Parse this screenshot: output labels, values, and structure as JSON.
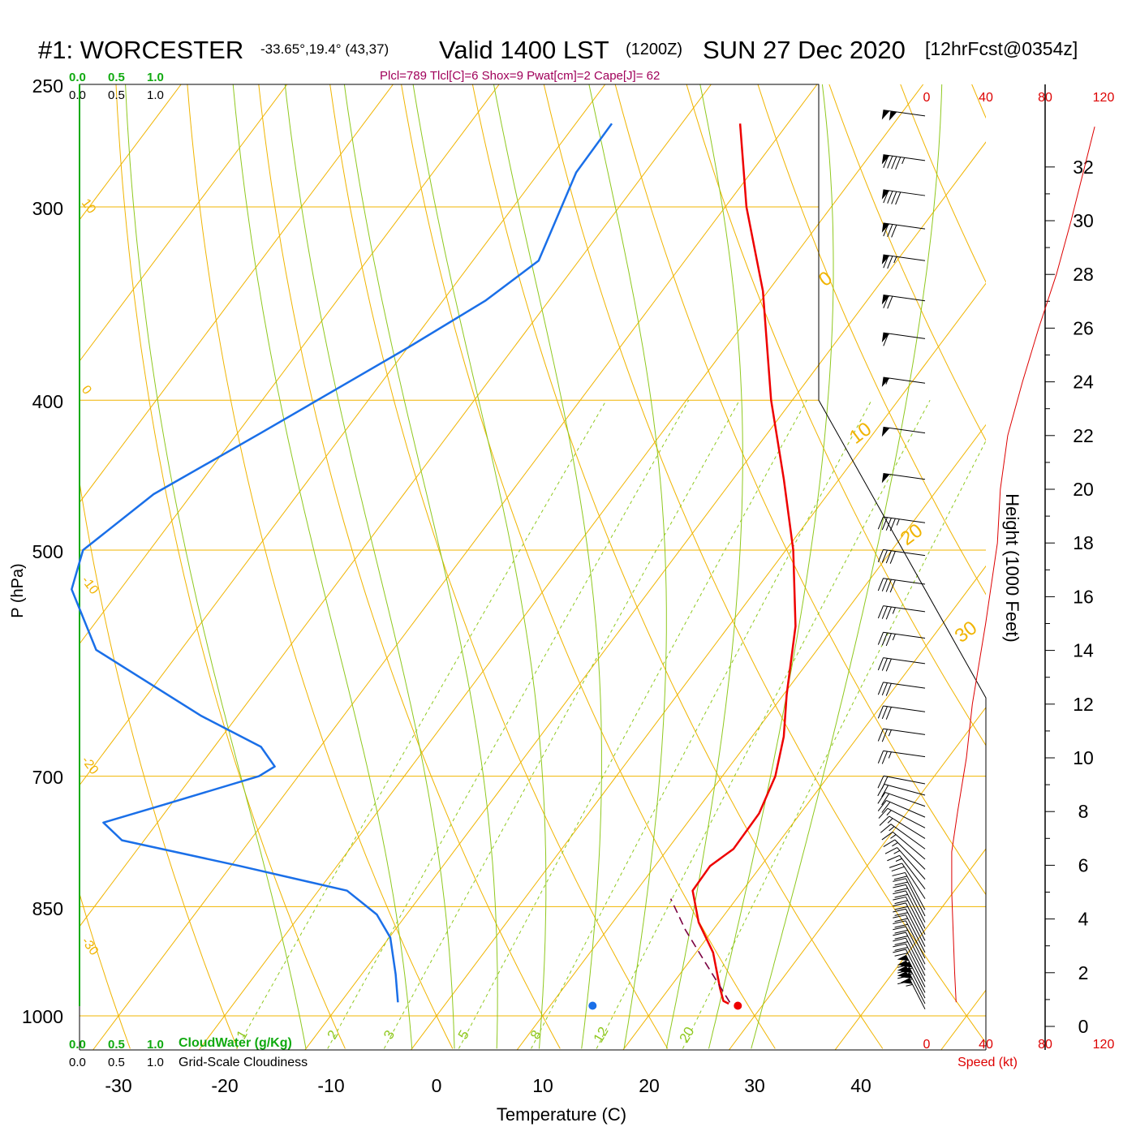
{
  "header": {
    "station": "#1: WORCESTER",
    "coords": "-33.65°,19.4° (43,37)",
    "valid": "Valid 1400 LST",
    "utc": "(1200Z)",
    "date": "SUN 27 Dec 2020",
    "forecast": "[12hrFcst@0354z]",
    "indices": "Plcl=789 Tlcl[C]=6 Shox=9 Pwat[cm]=2 Cape[J]= 62"
  },
  "colors": {
    "temperature": "#ee0000",
    "dewpoint": "#1a6fe8",
    "parcel": "#7a0040",
    "isotherm": "#f0b400",
    "dry_adiabat": "#f0b400",
    "moist_adiabat": "#8fc81e",
    "mixing_ratio": "#8fc81e",
    "cloudwater": "#11aa11",
    "wind_speed": "#dd0000",
    "index_text": "#a0005a"
  },
  "chart_data": {
    "type": "line",
    "title": "#1: WORCESTER  Valid 1400 LST (1200Z) SUN 27 Dec 2020 [12hrFcst@0354z]",
    "xlabel": "Temperature (C)",
    "ylabel": "P (hPa)",
    "right_axis_label": "Height (1000 Feet)",
    "x_ticks": [
      "-30",
      "-20",
      "-10",
      "0",
      "10",
      "20",
      "30",
      "40"
    ],
    "p_ticks": [
      "250",
      "300",
      "400",
      "500",
      "700",
      "850",
      "1000"
    ],
    "height_ticks": [
      "0",
      "2",
      "4",
      "6",
      "8",
      "10",
      "12",
      "14",
      "16",
      "18",
      "20",
      "22",
      "24",
      "26",
      "28",
      "30",
      "32"
    ],
    "speed_ticks_top": [
      "0",
      "40",
      "80",
      "120"
    ],
    "speed_ticks_bottom": [
      "0",
      "40",
      "80",
      "120"
    ],
    "speed_label": "Speed (kt)",
    "cloud_ticks_green": [
      "0.0",
      "0.5",
      "1.0"
    ],
    "cloud_ticks_black": [
      "0.0",
      "0.5",
      "1.0"
    ],
    "cloudwater_label": "CloudWater (g/Kg)",
    "cloudiness_label": "Grid-Scale Cloudiness",
    "mixing_ratio_labels": [
      "1",
      "2",
      "3",
      "5",
      "8",
      "12",
      "20"
    ],
    "isotherm_labels_left": [
      "10",
      "0",
      "-10",
      "-20",
      "-30"
    ],
    "isotherm_labels_right": [
      "0",
      "10",
      "20",
      "30"
    ],
    "series": [
      {
        "name": "temperature",
        "points": [
          {
            "p": 265,
            "t": -34.5
          },
          {
            "p": 300,
            "t": -28.0
          },
          {
            "p": 340,
            "t": -20.5
          },
          {
            "p": 400,
            "t": -12.0
          },
          {
            "p": 450,
            "t": -5.2
          },
          {
            "p": 500,
            "t": 0.7
          },
          {
            "p": 560,
            "t": 6.3
          },
          {
            "p": 620,
            "t": 10.3
          },
          {
            "p": 660,
            "t": 13.0
          },
          {
            "p": 700,
            "t": 15.0
          },
          {
            "p": 740,
            "t": 16.1
          },
          {
            "p": 780,
            "t": 16.2
          },
          {
            "p": 800,
            "t": 15.2
          },
          {
            "p": 830,
            "t": 15.3
          },
          {
            "p": 870,
            "t": 18.1
          },
          {
            "p": 910,
            "t": 21.6
          },
          {
            "p": 960,
            "t": 24.8
          },
          {
            "p": 978,
            "t": 26.0
          },
          {
            "p": 982,
            "t": 26.7
          }
        ]
      },
      {
        "name": "dewpoint",
        "points": [
          {
            "p": 265,
            "t": -46.6
          },
          {
            "p": 285,
            "t": -46.5
          },
          {
            "p": 325,
            "t": -43.8
          },
          {
            "p": 345,
            "t": -46.0
          },
          {
            "p": 370,
            "t": -50.0
          },
          {
            "p": 420,
            "t": -57.8
          },
          {
            "p": 460,
            "t": -63.6
          },
          {
            "p": 500,
            "t": -66.3
          },
          {
            "p": 530,
            "t": -64.6
          },
          {
            "p": 580,
            "t": -58.0
          },
          {
            "p": 640,
            "t": -43.4
          },
          {
            "p": 670,
            "t": -35.6
          },
          {
            "p": 690,
            "t": -32.9
          },
          {
            "p": 700,
            "t": -33.7
          },
          {
            "p": 730,
            "t": -40.6
          },
          {
            "p": 750,
            "t": -45.1
          },
          {
            "p": 770,
            "t": -42.1
          },
          {
            "p": 800,
            "t": -29.2
          },
          {
            "p": 830,
            "t": -17.3
          },
          {
            "p": 860,
            "t": -12.8
          },
          {
            "p": 890,
            "t": -9.9
          },
          {
            "p": 940,
            "t": -6.8
          },
          {
            "p": 980,
            "t": -4.6
          }
        ]
      },
      {
        "name": "parcel",
        "points": [
          {
            "p": 980,
            "t": 26.7
          },
          {
            "p": 925,
            "t": 21.7
          },
          {
            "p": 880,
            "t": 17.4
          },
          {
            "p": 840,
            "t": 13.8
          }
        ]
      }
    ],
    "surface_markers": [
      {
        "name": "dewpoint",
        "p": 985,
        "t": 14.0
      },
      {
        "name": "temperature",
        "p": 985,
        "t": 27.7
      }
    ],
    "wind_barbs_note": "wind barbs at right, speed increasing with height",
    "wind_speed_profile_kt": [
      {
        "h": 0.9,
        "s": 20
      },
      {
        "h": 2.0,
        "s": 19
      },
      {
        "h": 5.0,
        "s": 17
      },
      {
        "h": 6.5,
        "s": 17
      },
      {
        "h": 8.0,
        "s": 21
      },
      {
        "h": 10.0,
        "s": 27
      },
      {
        "h": 12.0,
        "s": 31
      },
      {
        "h": 13.0,
        "s": 34
      },
      {
        "h": 15.0,
        "s": 40
      },
      {
        "h": 18.0,
        "s": 48
      },
      {
        "h": 20.0,
        "s": 50
      },
      {
        "h": 22.0,
        "s": 55
      },
      {
        "h": 24.0,
        "s": 65
      },
      {
        "h": 26.0,
        "s": 76
      },
      {
        "h": 28.0,
        "s": 88
      },
      {
        "h": 30.0,
        "s": 98
      },
      {
        "h": 33.5,
        "s": 114
      }
    ]
  }
}
